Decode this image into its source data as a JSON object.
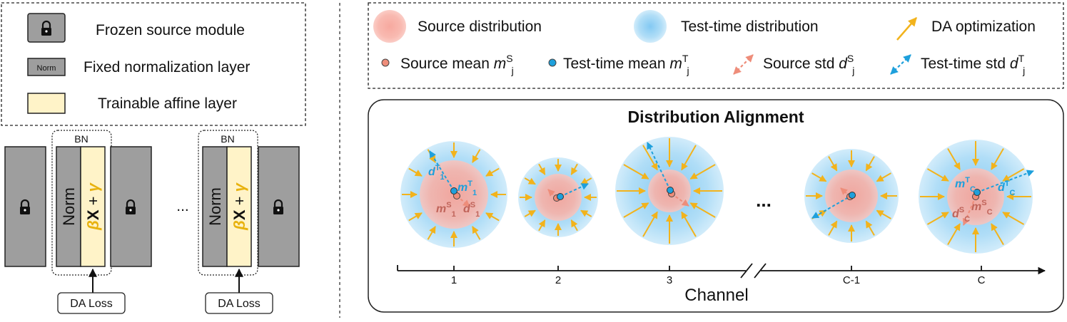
{
  "legend_left": {
    "frozen": "Frozen source module",
    "fixed_norm": "Fixed normalization layer",
    "norm_tag": "Norm",
    "trainable": "Trainable affine layer"
  },
  "network": {
    "bn_label": "BN",
    "norm_text": "Norm",
    "beta": "β",
    "x": "X",
    "plus": " + ",
    "gamma": "γ",
    "ellipsis": "...",
    "da_loss": "DA Loss"
  },
  "legend_right": {
    "source_dist": "Source distribution",
    "test_dist": "Test-time distribution",
    "da_opt": "DA optimization",
    "source_mean": "Source mean ",
    "test_mean": "Test-time mean ",
    "source_std": "Source std ",
    "test_std": "Test-time std ",
    "m": "m",
    "d": "d",
    "sup_s": "S",
    "sup_t": "T",
    "sub_j": "j"
  },
  "panel": {
    "title": "Distribution Alignment",
    "ellipsis": "...",
    "axis_label": "Channel",
    "ticks": [
      "1",
      "2",
      "3",
      "C-1",
      "C"
    ]
  },
  "channels": {
    "c1": {
      "m": "m",
      "d": "d",
      "sup_t": "T",
      "sup_s": "S",
      "sub": "1"
    },
    "cc": {
      "m": "m",
      "d": "d",
      "sup_t": "T",
      "sup_s": "S",
      "sub": "C"
    }
  },
  "colors": {
    "source": "#f6a49a",
    "test": "#9fd4f4",
    "arrow": "#f2b31c",
    "test_std": "#1ea0dc",
    "source_std": "#ee8d7a",
    "module": "#9e9e9e",
    "affine": "#fff3c8",
    "gamma": "#e8b20e"
  }
}
